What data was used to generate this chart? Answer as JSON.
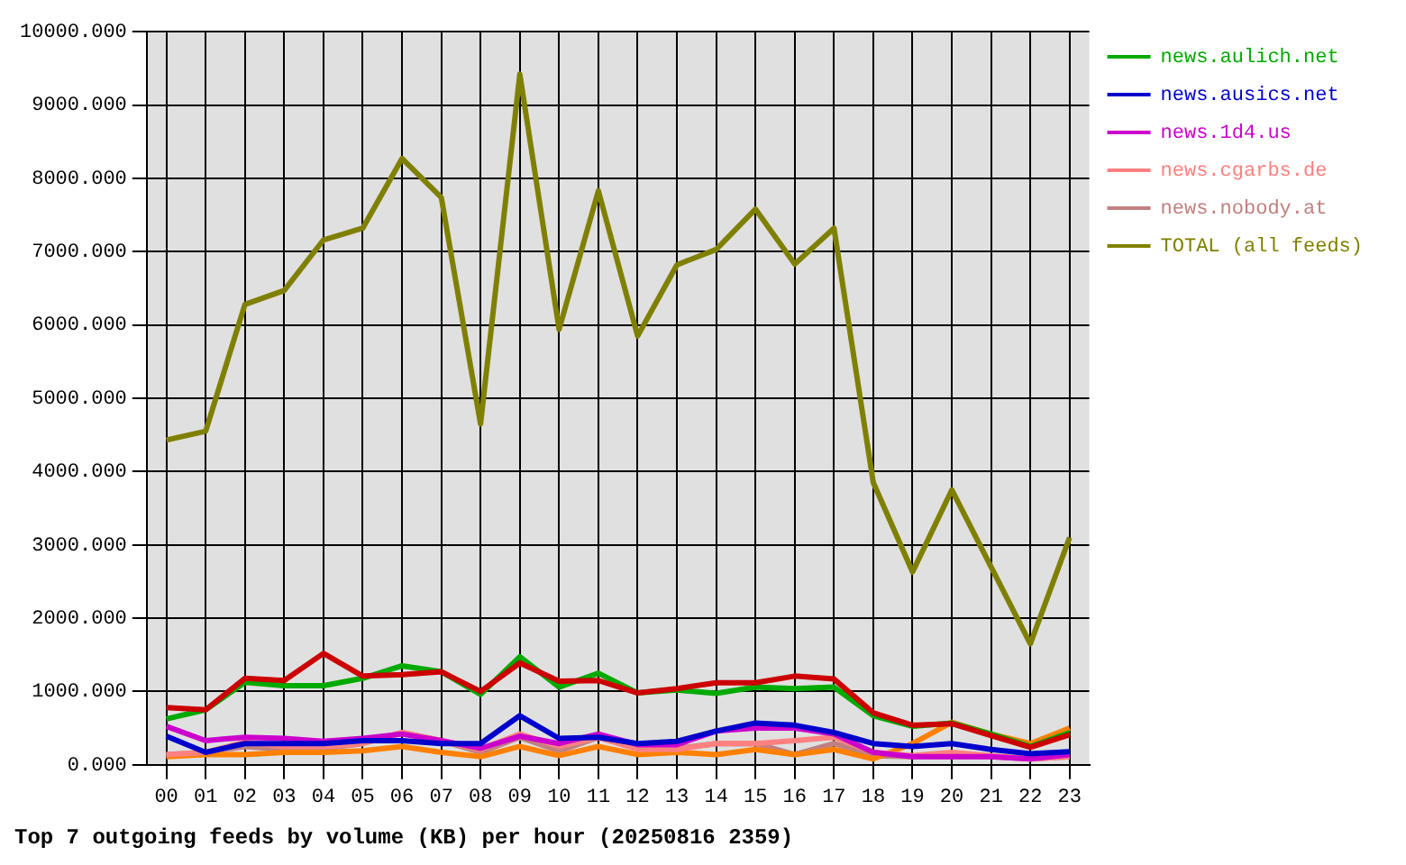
{
  "chart_data": {
    "type": "line",
    "title": "Top 7 outgoing feeds by volume (KB) per hour (20250816 2359)",
    "categories": [
      "00",
      "01",
      "02",
      "03",
      "04",
      "05",
      "06",
      "07",
      "08",
      "09",
      "10",
      "11",
      "12",
      "13",
      "14",
      "15",
      "16",
      "17",
      "18",
      "19",
      "20",
      "21",
      "22",
      "23"
    ],
    "series": [
      {
        "color": "#cc0000",
        "values": [
          780,
          750,
          1180,
          1150,
          1520,
          1210,
          1230,
          1270,
          1000,
          1390,
          1140,
          1150,
          980,
          1040,
          1120,
          1120,
          1210,
          1170,
          710,
          540,
          560,
          400,
          240,
          410
        ]
      },
      {
        "name": "news.aulich.net",
        "color": "#00aa00",
        "values": [
          625,
          750,
          1125,
          1080,
          1080,
          1180,
          1350,
          1270,
          960,
          1475,
          1060,
          1250,
          980,
          1020,
          975,
          1060,
          1040,
          1060,
          670,
          525,
          570,
          420,
          250,
          440
        ]
      },
      {
        "name": "news.ausics.net",
        "color": "#0000cc",
        "values": [
          390,
          170,
          290,
          290,
          290,
          330,
          330,
          290,
          290,
          670,
          360,
          375,
          290,
          320,
          460,
          570,
          540,
          440,
          290,
          250,
          290,
          210,
          150,
          180
        ]
      },
      {
        "name": "news.1d4.us",
        "color": "#cc00cc",
        "values": [
          525,
          330,
          375,
          360,
          320,
          360,
          420,
          330,
          225,
          390,
          290,
          420,
          275,
          275,
          460,
          500,
          500,
          420,
          170,
          110,
          110,
          110,
          80,
          140
        ]
      },
      {
        "name": "news.cgarbs.de",
        "color": "#ff8080",
        "values": [
          140,
          170,
          310,
          250,
          250,
          290,
          440,
          330,
          210,
          420,
          250,
          375,
          210,
          210,
          290,
          290,
          330,
          375,
          170,
          125,
          170,
          125,
          80,
          110
        ]
      },
      {
        "color": "#ff8000",
        "values": [
          110,
          140,
          140,
          170,
          170,
          190,
          250,
          170,
          110,
          250,
          125,
          250,
          140,
          170,
          140,
          210,
          140,
          210,
          80,
          290,
          580,
          420,
          290,
          500
        ]
      },
      {
        "name": "news.nobody.at",
        "color": "#c08080",
        "values": [
          140,
          170,
          250,
          210,
          225,
          290,
          440,
          330,
          170,
          375,
          190,
          375,
          225,
          225,
          290,
          290,
          140,
          290,
          125,
          110,
          110,
          110,
          80,
          110
        ]
      },
      {
        "name": "TOTAL (all feeds)",
        "color": "#808000",
        "values": [
          4430,
          4550,
          6280,
          6470,
          7160,
          7320,
          8270,
          7740,
          4650,
          9420,
          5940,
          7830,
          5850,
          6820,
          7030,
          7580,
          6830,
          7320,
          3850,
          2630,
          3750,
          2700,
          1650,
          3100
        ]
      }
    ],
    "ylim": [
      0,
      10000
    ],
    "yticks": [
      {
        "value": 0,
        "label": "0.000"
      },
      {
        "value": 1000,
        "label": "1000.000"
      },
      {
        "value": 2000,
        "label": "2000.000"
      },
      {
        "value": 3000,
        "label": "3000.000"
      },
      {
        "value": 4000,
        "label": "4000.000"
      },
      {
        "value": 5000,
        "label": "5000.000"
      },
      {
        "value": 6000,
        "label": "6000.000"
      },
      {
        "value": 7000,
        "label": "7000.000"
      },
      {
        "value": 8000,
        "label": "8000.000"
      },
      {
        "value": 9000,
        "label": "9000.000"
      },
      {
        "value": 10000,
        "label": "10000.000"
      }
    ],
    "grid": true,
    "legend": "right",
    "marker": "none",
    "line_style": "solid"
  }
}
